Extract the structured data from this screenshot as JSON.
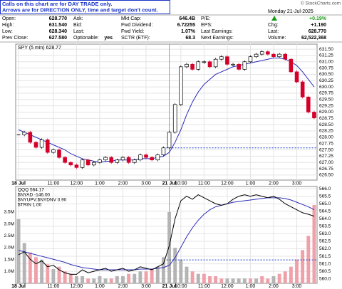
{
  "note": [
    "Calls on this chart are for DAY TRADE only.",
    "Arrows are for DIRECTION ONLY, time and target don't count."
  ],
  "source": "© StockCharts.com",
  "quote": {
    "col1": [
      [
        "Open:",
        "628.770"
      ],
      [
        "High:",
        "631.540"
      ],
      [
        "Low:",
        "628.340"
      ],
      [
        "Prev Close:",
        "627.580"
      ]
    ],
    "col2": [
      [
        "Ask:"
      ],
      [
        "Bid:"
      ],
      [
        "Last:"
      ],
      [
        "Optionable:",
        "yes"
      ]
    ],
    "col3": [
      [
        "Mkt Cap:",
        "646.4B"
      ],
      [
        "Fwd Dividend:",
        "6.72255"
      ],
      [
        "Fwd Yield:",
        "1.07%"
      ],
      [
        "SCTR (ETF):",
        "68.3"
      ]
    ],
    "col4": [
      [
        "P/E:"
      ],
      [
        "EPS:"
      ],
      [
        "Last Earnings:"
      ],
      [
        "Next Earnings:"
      ]
    ],
    "right": {
      "date": "Monday  21-Jul-2025",
      "change_pct": "+0.19%",
      "rows": [
        [
          "Chg:",
          "+1.190"
        ],
        [
          "Last:",
          "628.770"
        ],
        [
          "Volume:",
          "62,522,368"
        ]
      ]
    }
  },
  "chart_data": [
    {
      "type": "candlestick",
      "title": "SPY (5 min) 628.77",
      "values": [
        628.1,
        628.2,
        627.8,
        627.6,
        627.9,
        627.4,
        627.5,
        627.2,
        627.0,
        626.9,
        626.8,
        627.1,
        626.9,
        627.0,
        627.1,
        627.2,
        627.0,
        627.1,
        627.2,
        627.0,
        627.1,
        627.3,
        627.2,
        627.1,
        627.3,
        627.58,
        628.2,
        629.3,
        630.8,
        630.9,
        630.7,
        631.0,
        631.0,
        630.8,
        631.1,
        631.2,
        630.9,
        630.9,
        630.7,
        631.0,
        631.2,
        631.3,
        631.4,
        631.3,
        631.2,
        631.3,
        631.1,
        630.6,
        630.2,
        629.6,
        629.0,
        628.77
      ],
      "ma_values": [
        628.3,
        628.2,
        628.1,
        628.0,
        627.9,
        627.8,
        627.7,
        627.6,
        627.5,
        627.35,
        627.25,
        627.15,
        627.1,
        627.05,
        627.0,
        627.05,
        627.05,
        627.1,
        627.1,
        627.1,
        627.1,
        627.15,
        627.15,
        627.15,
        627.2,
        627.25,
        627.4,
        627.8,
        628.3,
        628.9,
        629.4,
        629.8,
        630.1,
        630.3,
        630.5,
        630.6,
        630.7,
        630.8,
        630.85,
        630.9,
        630.95,
        631.0,
        631.05,
        631.1,
        631.15,
        631.15,
        631.1,
        631.0,
        630.85,
        630.6,
        630.3,
        630.0
      ],
      "up_color": "#000000",
      "down_color": "#d4002a",
      "ma_color": "#2b2bb8",
      "reference_line": 627.58,
      "xlim": [
        -0.5,
        51.5
      ],
      "xticks": [
        {
          "value": 0,
          "label": "18 Jul"
        },
        {
          "value": 6,
          "label": "11:00"
        },
        {
          "value": 10,
          "label": "12:00"
        },
        {
          "value": 14,
          "label": "1:00"
        },
        {
          "value": 18,
          "label": "2:00"
        },
        {
          "value": 22,
          "label": "3:00"
        },
        {
          "value": 26,
          "label": "21 Jul"
        },
        {
          "value": 28,
          "label": "10:00"
        },
        {
          "value": 32,
          "label": "11:00"
        },
        {
          "value": 36,
          "label": "12:00"
        },
        {
          "value": 40,
          "label": "1:00"
        },
        {
          "value": 44,
          "label": "2:00"
        },
        {
          "value": 48,
          "label": "3:00"
        }
      ],
      "ylim": [
        626.3,
        631.7
      ],
      "yticks": [
        {
          "value": 626.5,
          "label": "626.50"
        },
        {
          "value": 626.75,
          "label": "626.75"
        },
        {
          "value": 627,
          "label": "627.00"
        },
        {
          "value": 627.25,
          "label": "627.25"
        },
        {
          "value": 627.5,
          "label": "627.50"
        },
        {
          "value": 627.75,
          "label": "627.75"
        },
        {
          "value": 628,
          "label": "628.00"
        },
        {
          "value": 628.25,
          "label": "628.25"
        },
        {
          "value": 628.5,
          "label": "628.50"
        },
        {
          "value": 628.75,
          "label": "628.75"
        },
        {
          "value": 629,
          "label": "629.00"
        },
        {
          "value": 629.25,
          "label": "629.25"
        },
        {
          "value": 629.5,
          "label": "629.50"
        },
        {
          "value": 629.75,
          "label": "629.75"
        },
        {
          "value": 630,
          "label": "630.00"
        },
        {
          "value": 630.25,
          "label": "630.25"
        },
        {
          "value": 630.5,
          "label": "630.50"
        },
        {
          "value": 630.75,
          "label": "630.75"
        },
        {
          "value": 631,
          "label": "631.00"
        },
        {
          "value": 631.25,
          "label": "631.25"
        },
        {
          "value": 631.5,
          "label": "631.50"
        }
      ],
      "grid": true
    },
    {
      "type": "line",
      "legend": [
        "QQQ 564.17",
        "$NYAD -146.00",
        "$NYUPV:$NYDNV 0.90",
        "$TRIN 1.00"
      ],
      "values": [
        561.6,
        561.8,
        561.3,
        561.0,
        561.2,
        560.8,
        560.9,
        560.6,
        560.4,
        560.3,
        560.3,
        560.6,
        560.4,
        560.5,
        560.6,
        560.7,
        560.5,
        560.6,
        560.7,
        560.5,
        560.6,
        560.8,
        560.7,
        560.6,
        560.8,
        561.0,
        562.2,
        564.0,
        565.2,
        565.5,
        565.3,
        565.6,
        565.4,
        565.2,
        565.0,
        564.9,
        565.0,
        565.3,
        565.5,
        565.6,
        565.5,
        565.6,
        565.5,
        565.4,
        565.5,
        565.3,
        565.0,
        564.8,
        564.6,
        564.4,
        564.3,
        564.17
      ],
      "ma_values": [
        561.9,
        561.8,
        561.7,
        561.6,
        561.5,
        561.4,
        561.3,
        561.2,
        561.1,
        560.95,
        560.85,
        560.75,
        560.7,
        560.65,
        560.6,
        560.6,
        560.6,
        560.6,
        560.6,
        560.6,
        560.6,
        560.65,
        560.65,
        560.65,
        560.7,
        560.75,
        560.9,
        561.4,
        562.1,
        562.8,
        563.4,
        563.9,
        564.3,
        564.6,
        564.8,
        564.9,
        565.0,
        565.1,
        565.15,
        565.2,
        565.25,
        565.3,
        565.35,
        565.4,
        565.4,
        565.4,
        565.35,
        565.25,
        565.1,
        564.95,
        564.8,
        564.6
      ],
      "volume": [
        3200000,
        2200000,
        1800000,
        1600000,
        1500000,
        1300000,
        1100000,
        1200000,
        1000000,
        900000,
        800000,
        800000,
        700000,
        700000,
        800000,
        700000,
        700000,
        800000,
        800000,
        900000,
        900000,
        1000000,
        1000000,
        1100000,
        1200000,
        1600000,
        3500000,
        2000000,
        1500000,
        1200000,
        1000000,
        900000,
        900000,
        800000,
        800000,
        700000,
        700000,
        700000,
        700000,
        700000,
        700000,
        700000,
        800000,
        700000,
        800000,
        900000,
        1000000,
        1200000,
        1500000,
        1900000,
        2500000,
        3800000
      ],
      "color": "#000000",
      "ma_color": "#2b2bb8",
      "volume_up_color": "#b4b4b4",
      "volume_down_color": "#f0a0a8",
      "reference_line": 561.26,
      "xlim": [
        -0.5,
        51.5
      ],
      "xticks": [
        {
          "value": 0,
          "label": "18 Jul"
        },
        {
          "value": 6,
          "label": "11:00"
        },
        {
          "value": 10,
          "label": "12:00"
        },
        {
          "value": 14,
          "label": "1:00"
        },
        {
          "value": 18,
          "label": "2:00"
        },
        {
          "value": 22,
          "label": "3:00"
        },
        {
          "value": 26,
          "label": "21 Jul"
        },
        {
          "value": 28,
          "label": "10:00"
        },
        {
          "value": 32,
          "label": "11:00"
        },
        {
          "value": 36,
          "label": "12:00"
        },
        {
          "value": 40,
          "label": "1:00"
        },
        {
          "value": 44,
          "label": "2:00"
        },
        {
          "value": 48,
          "label": "3:00"
        }
      ],
      "ylim": [
        559.7,
        566.15
      ],
      "yticks": [
        {
          "value": 560,
          "label": "560.0"
        },
        {
          "value": 560.5,
          "label": "560.5"
        },
        {
          "value": 561,
          "label": "561.0"
        },
        {
          "value": 561.5,
          "label": "561.5"
        },
        {
          "value": 562,
          "label": "562.0"
        },
        {
          "value": 562.5,
          "label": "562.5"
        },
        {
          "value": 563,
          "label": "563.0"
        },
        {
          "value": 563.5,
          "label": "563.5"
        },
        {
          "value": 564,
          "label": "564.0"
        },
        {
          "value": 564.5,
          "label": "564.5"
        },
        {
          "value": 565,
          "label": "565.0"
        },
        {
          "value": 565.5,
          "label": "565.5"
        },
        {
          "value": 566,
          "label": "566.0"
        }
      ],
      "y2lim": [
        500000,
        4580000
      ],
      "y2ticks": [
        {
          "value": 1000000,
          "label": "1.0M"
        },
        {
          "value": 1500000,
          "label": "1.5M"
        },
        {
          "value": 2000000,
          "label": "2.0M"
        },
        {
          "value": 2500000,
          "label": "2.5M"
        },
        {
          "value": 3000000,
          "label": "3.0M"
        },
        {
          "value": 3500000,
          "label": "3.5M"
        }
      ],
      "grid": true
    }
  ]
}
